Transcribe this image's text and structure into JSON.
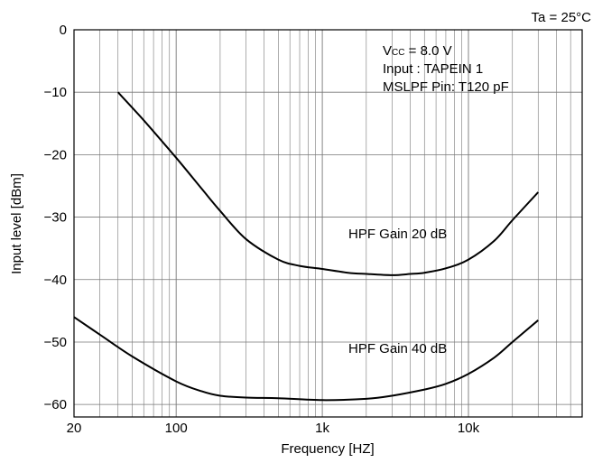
{
  "chart_data": {
    "type": "line",
    "title": "",
    "condition": "Ta = 25°C",
    "xlabel": "Frequency [HZ]",
    "ylabel": "Input level [dBm]",
    "xscale": "log",
    "xlim": [
      20,
      60000
    ],
    "ylim": [
      -62,
      0
    ],
    "grid": true,
    "x_ticks": [
      {
        "value": 20,
        "label": "20"
      },
      {
        "value": 100,
        "label": "100"
      },
      {
        "value": 1000,
        "label": "1k"
      },
      {
        "value": 10000,
        "label": "10k"
      }
    ],
    "y_ticks": [
      {
        "value": 0,
        "label": "0"
      },
      {
        "value": -10,
        "label": "−10"
      },
      {
        "value": -20,
        "label": "−20"
      },
      {
        "value": -30,
        "label": "−30"
      },
      {
        "value": -40,
        "label": "−40"
      },
      {
        "value": -50,
        "label": "−50"
      },
      {
        "value": -60,
        "label": "−60"
      }
    ],
    "annotations": {
      "vcc_prefix": "V",
      "vcc_sub": "CC",
      "vcc_value": " = 8.0 V",
      "input": "Input : TAPEIN 1",
      "mslpf": "MSLPF Pin: T120 pF"
    },
    "series": [
      {
        "name": "HPF Gain 20 dB",
        "x": [
          40,
          60,
          100,
          150,
          200,
          300,
          500,
          700,
          1000,
          1500,
          2000,
          3000,
          4000,
          5000,
          7000,
          10000,
          15000,
          20000,
          30000
        ],
        "y": [
          -10,
          -14.5,
          -20.5,
          -25.5,
          -29,
          -33.5,
          -36.8,
          -37.8,
          -38.3,
          -38.9,
          -39.1,
          -39.3,
          -39.1,
          -38.9,
          -38.2,
          -36.8,
          -33.8,
          -30.5,
          -26
        ]
      },
      {
        "name": "HPF Gain 40 dB",
        "x": [
          20,
          30,
          50,
          100,
          150,
          200,
          300,
          500,
          1000,
          2000,
          3000,
          5000,
          7000,
          10000,
          15000,
          20000,
          30000
        ],
        "y": [
          -46,
          -48.8,
          -52.3,
          -56.3,
          -57.9,
          -58.6,
          -58.9,
          -59.0,
          -59.3,
          -59.1,
          -58.6,
          -57.6,
          -56.7,
          -55.1,
          -52.5,
          -50.0,
          -46.5
        ]
      }
    ],
    "curve_labels": {
      "s0": "HPF Gain 20 dB",
      "s1": "HPF Gain 40 dB"
    }
  }
}
